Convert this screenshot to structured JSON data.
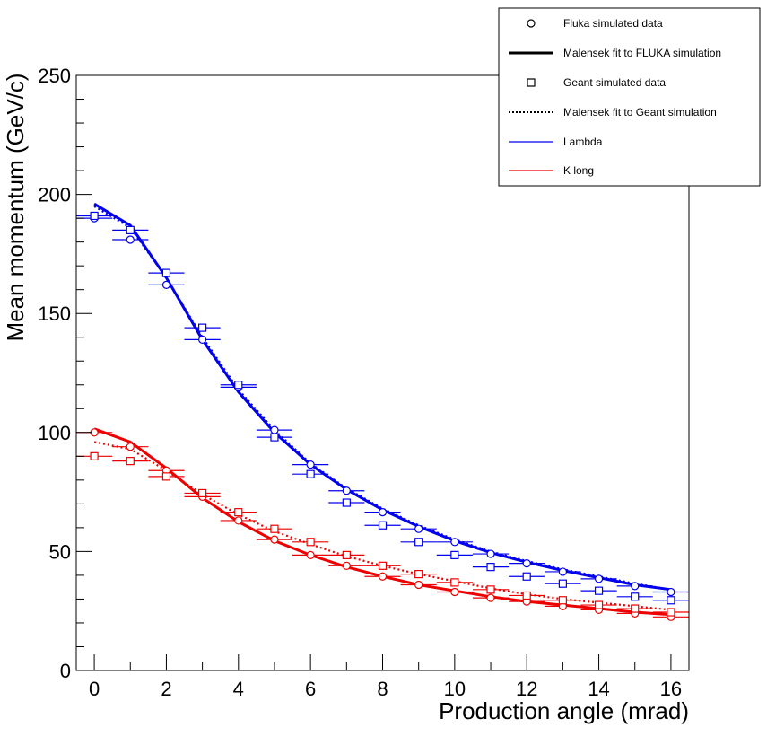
{
  "chart_data": {
    "type": "scatter",
    "title": "",
    "xlabel": "Production angle (mrad)",
    "ylabel": "Mean momentum (GeV/c)",
    "xlim": [
      -0.5,
      16.5
    ],
    "ylim": [
      0,
      250
    ],
    "x_ticks": [
      "0",
      "2",
      "4",
      "6",
      "8",
      "10",
      "12",
      "14",
      "16"
    ],
    "y_ticks": [
      "0",
      "50",
      "100",
      "150",
      "200",
      "250"
    ],
    "grid": false,
    "legend_position": "top-right",
    "legend": [
      {
        "label": "Fluka simulated data",
        "kind": "circle"
      },
      {
        "label": "Malensek fit to FLUKA simulation",
        "kind": "solid-line"
      },
      {
        "label": "Geant simulated data",
        "kind": "square"
      },
      {
        "label": "Malensek fit to Geant simulation",
        "kind": "dotted-line"
      },
      {
        "label": "Lambda",
        "kind": "blue-line"
      },
      {
        "label": "K long",
        "kind": "red-line"
      }
    ],
    "colors": {
      "Lambda": "#0000ee",
      "K long": "#ee0000"
    },
    "x": [
      0,
      1,
      2,
      3,
      4,
      5,
      6,
      7,
      8,
      9,
      10,
      11,
      12,
      13,
      14,
      15,
      16
    ],
    "x_error": 0.5,
    "series": [
      {
        "name": "Lambda - Fluka simulated data",
        "particle": "Lambda",
        "kind": "circle",
        "values": [
          190,
          181,
          162,
          139,
          119,
          101,
          86.5,
          75.5,
          66.5,
          59.5,
          54,
          49,
          45,
          41.5,
          38.5,
          35.5,
          33
        ]
      },
      {
        "name": "Lambda - Geant simulated data",
        "particle": "Lambda",
        "kind": "square",
        "values": [
          191,
          185,
          167,
          144,
          120,
          98,
          82.5,
          70.5,
          61,
          54,
          48.5,
          43.5,
          39.5,
          36.5,
          33.5,
          31,
          29.5
        ]
      },
      {
        "name": "K long - Fluka simulated data",
        "particle": "K long",
        "kind": "circle",
        "values": [
          100,
          94,
          84,
          73,
          63,
          55,
          48.5,
          44,
          39.5,
          36,
          33,
          30.5,
          29,
          27,
          25.5,
          24,
          22.5
        ]
      },
      {
        "name": "K long - Geant simulated data",
        "particle": "K long",
        "kind": "square",
        "values": [
          90,
          88,
          81.5,
          74.5,
          66.5,
          59.5,
          54,
          48.5,
          44,
          40.5,
          37,
          34,
          31.5,
          29.5,
          27.5,
          26,
          24.5
        ]
      },
      {
        "name": "Lambda - Malensek fit to FLUKA simulation",
        "particle": "Lambda",
        "kind": "solid-line",
        "values": [
          196,
          187,
          165,
          139,
          117,
          100,
          86.5,
          76,
          67.5,
          60.5,
          54.5,
          49.5,
          45.5,
          42,
          39,
          36,
          34
        ]
      },
      {
        "name": "Lambda - Malensek fit to Geant simulation",
        "particle": "Lambda",
        "kind": "dotted-line",
        "values": [
          195,
          186,
          165,
          140,
          118,
          101,
          87,
          76.5,
          68,
          61,
          55,
          50,
          46,
          42.5,
          39.5,
          36.5,
          34
        ]
      },
      {
        "name": "K long - Malensek fit to FLUKA simulation",
        "particle": "K long",
        "kind": "solid-line",
        "values": [
          101.5,
          96,
          85,
          72.5,
          62.5,
          54.5,
          48.5,
          43.5,
          39.5,
          36,
          33.5,
          31,
          29,
          27.5,
          26,
          24.5,
          23.5
        ]
      },
      {
        "name": "K long - Malensek fit to Geant simulation",
        "particle": "K long",
        "kind": "dotted-line",
        "values": [
          96,
          93,
          84,
          74,
          65.5,
          58.5,
          53,
          48,
          44,
          40.5,
          37.5,
          34.5,
          32,
          30,
          28.5,
          27,
          25.5
        ]
      }
    ]
  }
}
